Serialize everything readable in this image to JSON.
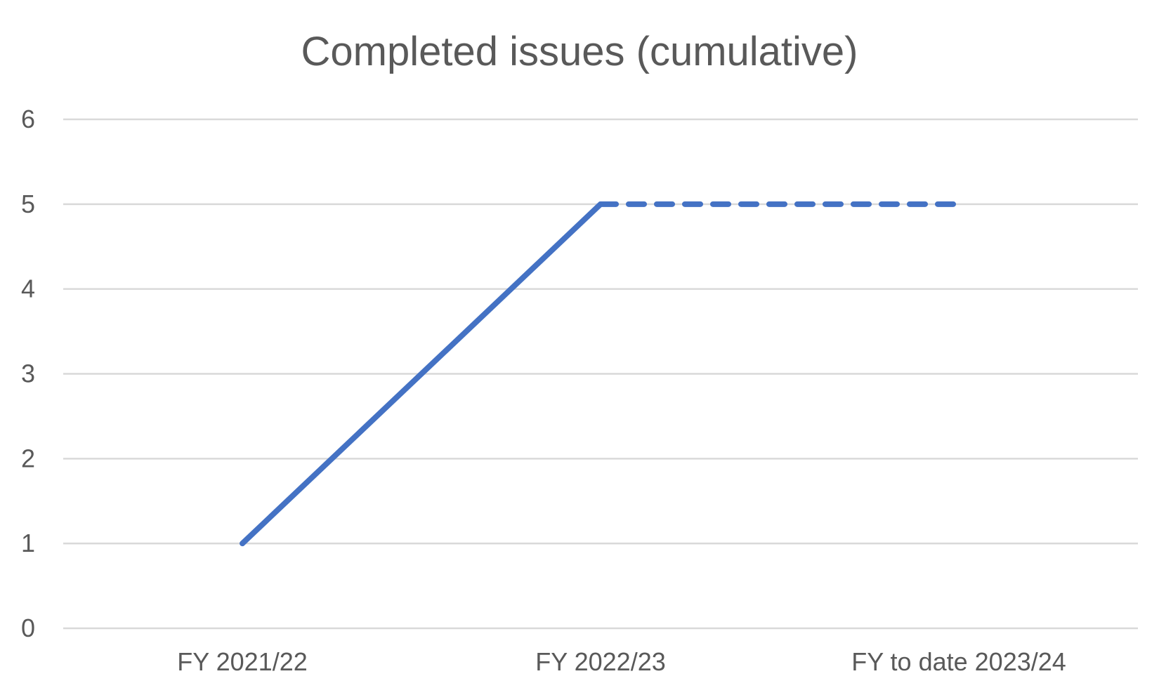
{
  "chart_data": {
    "type": "line",
    "title": "Completed issues (cumulative)",
    "categories": [
      "FY 2021/22",
      "FY 2022/23",
      "FY to date 2023/24"
    ],
    "series": [
      {
        "values": [
          1,
          5,
          5
        ],
        "color": "#4472c4",
        "segment_styles": [
          "solid",
          "dashed"
        ]
      }
    ],
    "ylim": [
      0,
      6
    ],
    "yticks": [
      "0",
      "1",
      "2",
      "3",
      "4",
      "5",
      "6"
    ],
    "xlabel": "",
    "ylabel": "",
    "grid": true,
    "legend": "none"
  }
}
